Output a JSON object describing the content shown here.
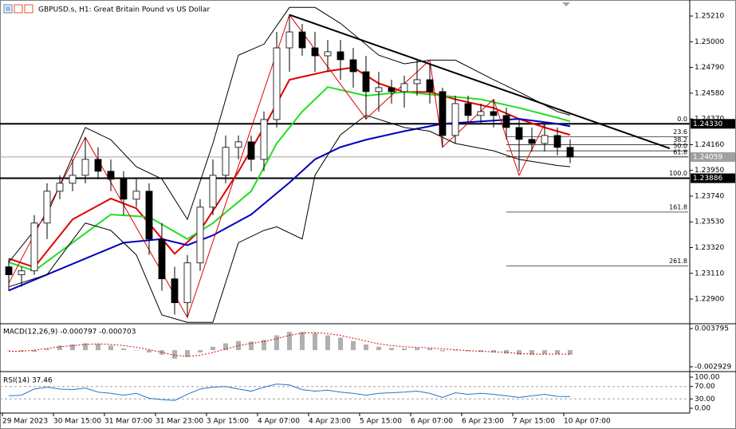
{
  "chart_data": [
    {
      "type": "candlestick",
      "title": "GBPUSD.s, H1:  Great Britain Pound vs US Dollar",
      "categories": [
        "29 Mar 2023",
        null,
        null,
        null,
        "30 Mar 15:00",
        null,
        null,
        null,
        "31 Mar 07:00",
        null,
        null,
        null,
        "31 Mar 23:00",
        null,
        null,
        null,
        "3 Apr 15:00",
        null,
        null,
        null,
        "4 Apr 07:00",
        null,
        null,
        null,
        "4 Apr 23:00",
        null,
        null,
        null,
        "5 Apr 15:00",
        null,
        null,
        null,
        "6 Apr 07:00",
        null,
        null,
        null,
        "6 Apr 23:00",
        null,
        null,
        null,
        "7 Apr 15:00",
        null,
        null,
        null,
        "10 Apr 07:00"
      ],
      "open": [
        1.23163,
        1.23098,
        1.2313,
        1.2352,
        1.2378,
        1.23845,
        1.2391,
        1.2404,
        1.23943,
        1.23878,
        1.23715,
        1.2378,
        1.2339,
        1.23065,
        1.2287,
        1.23195,
        1.2365,
        1.2391,
        1.24138,
        1.24183,
        1.2404,
        1.24365,
        1.2495,
        1.2508,
        1.2495,
        1.24885,
        1.24918,
        1.24853,
        1.24755,
        1.24593,
        1.24625,
        1.24593,
        1.24658,
        1.2469,
        1.24593,
        1.24235,
        1.24495,
        1.24398,
        1.2443,
        1.24398,
        1.243,
        1.24203,
        1.2417,
        1.24235,
        1.24138
      ],
      "high": [
        1.23228,
        1.23163,
        1.23585,
        1.23845,
        1.2391,
        1.2404,
        1.24222,
        1.24138,
        1.2404,
        1.23943,
        1.23878,
        1.23845,
        1.2352,
        1.23163,
        1.2326,
        1.23715,
        1.2404,
        1.24235,
        1.24235,
        1.24235,
        1.2443,
        1.2508,
        1.25223,
        1.25145,
        1.2508,
        1.25015,
        1.25015,
        1.2495,
        1.24885,
        1.24755,
        1.2469,
        1.24723,
        1.24853,
        1.2482,
        1.24625,
        1.2456,
        1.2456,
        1.24495,
        1.24528,
        1.24463,
        1.24365,
        1.243,
        1.24333,
        1.243,
        1.24203
      ],
      "low": [
        1.22968,
        1.23,
        1.23098,
        1.2339,
        1.23715,
        1.2378,
        1.23845,
        1.23878,
        1.2378,
        1.23585,
        1.2365,
        1.2326,
        1.22968,
        1.22773,
        1.22753,
        1.2313,
        1.23585,
        1.23845,
        1.2404,
        1.23943,
        1.23943,
        1.243,
        1.24755,
        1.24885,
        1.24755,
        1.24755,
        1.2469,
        1.24625,
        1.24365,
        1.2443,
        1.24495,
        1.24463,
        1.2456,
        1.24495,
        1.24138,
        1.2417,
        1.24333,
        1.24333,
        1.243,
        1.24203,
        1.23943,
        1.24105,
        1.24105,
        1.24073,
        1.24008
      ],
      "close": [
        1.23098,
        1.2313,
        1.2352,
        1.2378,
        1.23845,
        1.2391,
        1.2404,
        1.23943,
        1.23878,
        1.23715,
        1.2378,
        1.2339,
        1.23065,
        1.2287,
        1.23195,
        1.2365,
        1.2391,
        1.24138,
        1.24183,
        1.2404,
        1.24365,
        1.2495,
        1.2508,
        1.2495,
        1.24885,
        1.24918,
        1.24853,
        1.24755,
        1.24593,
        1.24625,
        1.24593,
        1.24658,
        1.2469,
        1.24593,
        1.24235,
        1.24495,
        1.24398,
        1.2443,
        1.24398,
        1.243,
        1.24203,
        1.2417,
        1.24235,
        1.24138,
        1.24059
      ],
      "ylim": [
        1.22705,
        1.25308
      ],
      "yticks": [
        {
          "value": 1.2521,
          "label": "1.25210"
        },
        {
          "value": 1.25,
          "label": "1.25000"
        },
        {
          "value": 1.2479,
          "label": "1.24790"
        },
        {
          "value": 1.2458,
          "label": "1.24580"
        },
        {
          "value": 1.2437,
          "label": "1.24370"
        },
        {
          "value": 1.2416,
          "label": "1.24160"
        },
        {
          "value": 1.2395,
          "label": "1.23950"
        },
        {
          "value": 1.2374,
          "label": "1.23740"
        },
        {
          "value": 1.2353,
          "label": "1.23530"
        },
        {
          "value": 1.2332,
          "label": "1.23320"
        },
        {
          "value": 1.2311,
          "label": "1.23110"
        },
        {
          "value": 1.229,
          "label": "1.22900"
        }
      ],
      "overlays": [
        {
          "color": "#e00000",
          "width": 2,
          "x": [
            0,
            2,
            5,
            8,
            10,
            13,
            15,
            18,
            20,
            22,
            25,
            27,
            29,
            31,
            33,
            35,
            38,
            40,
            42,
            44
          ],
          "values": [
            1.2323,
            1.2316,
            1.2355,
            1.2372,
            1.2364,
            1.2327,
            1.2346,
            1.2394,
            1.243,
            1.2469,
            1.2476,
            1.2479,
            1.2466,
            1.2459,
            1.2459,
            1.2453,
            1.2446,
            1.2437,
            1.243,
            1.2424
          ]
        },
        {
          "color": "#22dd22",
          "width": 2,
          "x": [
            0,
            2,
            5,
            8,
            11,
            14,
            16,
            19,
            21,
            23,
            25,
            28,
            31,
            34,
            37,
            40,
            43,
            44
          ],
          "values": [
            1.232,
            1.2313,
            1.2336,
            1.2359,
            1.2357,
            1.2339,
            1.2352,
            1.2378,
            1.2417,
            1.2443,
            1.2463,
            1.2456,
            1.2459,
            1.2456,
            1.2453,
            1.2446,
            1.2438,
            1.2435
          ]
        },
        {
          "color": "#0000c0",
          "width": 2,
          "x": [
            0,
            3,
            6,
            9,
            12,
            14,
            16,
            19,
            22,
            24,
            26,
            28,
            31,
            34,
            37,
            40,
            43,
            44
          ],
          "values": [
            1.2297,
            1.231,
            1.2323,
            1.2336,
            1.2339,
            1.2334,
            1.2342,
            1.2359,
            1.2385,
            1.2404,
            1.2414,
            1.242,
            1.2427,
            1.2433,
            1.2435,
            1.2437,
            1.2433,
            1.2431
          ]
        },
        {
          "color": "#000000",
          "width": 1,
          "x": [
            0,
            3,
            6,
            8,
            10,
            12,
            14,
            16,
            18,
            20,
            22,
            24,
            26,
            29,
            31,
            33,
            35,
            38,
            40,
            43,
            44
          ],
          "values": [
            1.232,
            1.2359,
            1.243,
            1.242,
            1.2398,
            1.2388,
            1.2355,
            1.2417,
            1.2489,
            1.2498,
            1.2528,
            1.2528,
            1.2515,
            1.2489,
            1.2482,
            1.2485,
            1.2485,
            1.2469,
            1.2459,
            1.2443,
            1.244
          ]
        },
        {
          "color": "#000000",
          "width": 1,
          "x": [
            0,
            3,
            6,
            8,
            10,
            12,
            14,
            16,
            18,
            20,
            21,
            23,
            24,
            26,
            28,
            31,
            33,
            35,
            38,
            40,
            43,
            44
          ],
          "values": [
            1.23,
            1.231,
            1.2352,
            1.2346,
            1.2326,
            1.2277,
            1.2271,
            1.2271,
            1.2336,
            1.2346,
            1.2349,
            1.2339,
            1.2391,
            1.2424,
            1.244,
            1.243,
            1.2427,
            1.2417,
            1.2411,
            1.2404,
            1.2399,
            1.2398
          ]
        },
        {
          "color": "#e00000",
          "width": 1,
          "x": [
            0,
            6,
            14,
            22,
            28,
            33,
            34,
            38,
            40,
            42
          ],
          "values": [
            1.2303,
            1.2422,
            1.2275,
            1.2522,
            1.2437,
            1.2485,
            1.2414,
            1.2453,
            1.2391,
            1.2433
          ]
        },
        {
          "color": "#000000",
          "width": 2,
          "x": [
            22,
            51.8
          ],
          "values": [
            1.2522,
            1.2413
          ]
        }
      ],
      "levels": [
        {
          "value": 1.2433,
          "label": "1.24330",
          "color": "#000000"
        },
        {
          "value": 1.24059,
          "label": "1.24059",
          "color": "#a0a0a0"
        },
        {
          "value": 1.23886,
          "label": "1.23886",
          "color": "#000000"
        }
      ],
      "fib_start": 39,
      "fib": [
        {
          "value": 1.2433,
          "label": "0.0"
        },
        {
          "value": 1.24225,
          "label": "23.6"
        },
        {
          "value": 1.2416,
          "label": "38.2"
        },
        {
          "value": 1.2411,
          "label": "50.0"
        },
        {
          "value": 1.2406,
          "label": "61.8"
        },
        {
          "value": 1.23886,
          "label": "100.0"
        },
        {
          "value": 1.2361,
          "label": "161.8"
        },
        {
          "value": 1.2317,
          "label": "261.8"
        }
      ]
    },
    {
      "type": "macd",
      "title": "MACD(12,26,9) -0.000797 -0.000703",
      "values": [
        0,
        -0.0002,
        -0.0003,
        0.0002,
        0.0008,
        0.001,
        0.0012,
        0.0011,
        0.0008,
        0.0003,
        0,
        -0.0004,
        -0.0008,
        -0.0015,
        -0.0012,
        -0.0004,
        0.0006,
        0.0012,
        0.0016,
        0.0015,
        0.0018,
        0.0026,
        0.0032,
        0.0032,
        0.003,
        0.0026,
        0.0022,
        0.0016,
        0.001,
        0.0006,
        0.0004,
        0.0003,
        0.0004,
        0.0003,
        -0.0002,
        -0.0001,
        -0.0002,
        -0.0003,
        -0.0004,
        -0.0006,
        -0.0008,
        -0.0008,
        -0.0007,
        -0.0007,
        -0.000797
      ],
      "signal": {
        "color": "#e00000",
        "values": [
          -0.0002,
          -0.0002,
          0,
          0.0003,
          0.0006,
          0.0008,
          0.001,
          0.0011,
          0.001,
          0.0008,
          0.0005,
          0.0001,
          -0.0004,
          -0.0009,
          -0.0011,
          -0.0009,
          -0.0004,
          0.0002,
          0.0008,
          0.0012,
          0.0015,
          0.002,
          0.0026,
          0.003,
          0.0031,
          0.0029,
          0.0026,
          0.0021,
          0.0016,
          0.0011,
          0.0008,
          0.0006,
          0.0005,
          0.0004,
          0.0002,
          0.0001,
          -0.0001,
          -0.0002,
          -0.0003,
          -0.0004,
          -0.0006,
          -0.0007,
          -0.0007,
          -0.0007,
          -0.000703
        ]
      },
      "color": "#b0b0b0",
      "ylim": [
        -0.00363,
        0.00436
      ],
      "yticks": [
        0.003795,
        -0.002929
      ]
    },
    {
      "type": "line",
      "title": "RSI(14) 37.46",
      "color": "#1e78c8",
      "values": [
        40,
        42,
        62,
        68,
        62,
        60,
        65,
        52,
        48,
        42,
        48,
        32,
        28,
        25,
        45,
        62,
        68,
        70,
        62,
        55,
        68,
        78,
        75,
        60,
        55,
        58,
        52,
        48,
        42,
        48,
        50,
        52,
        55,
        48,
        35,
        50,
        45,
        48,
        45,
        40,
        35,
        40,
        45,
        38,
        37.46
      ],
      "ylim": [
        -15.4,
        115.4
      ],
      "yticks": [
        {
          "value": 100,
          "label": "100.00"
        },
        {
          "value": 70,
          "label": "70.00"
        },
        {
          "value": 30,
          "label": "30.00"
        },
        {
          "value": 0,
          "label": "0.00"
        }
      ],
      "grid": "dashed"
    }
  ]
}
